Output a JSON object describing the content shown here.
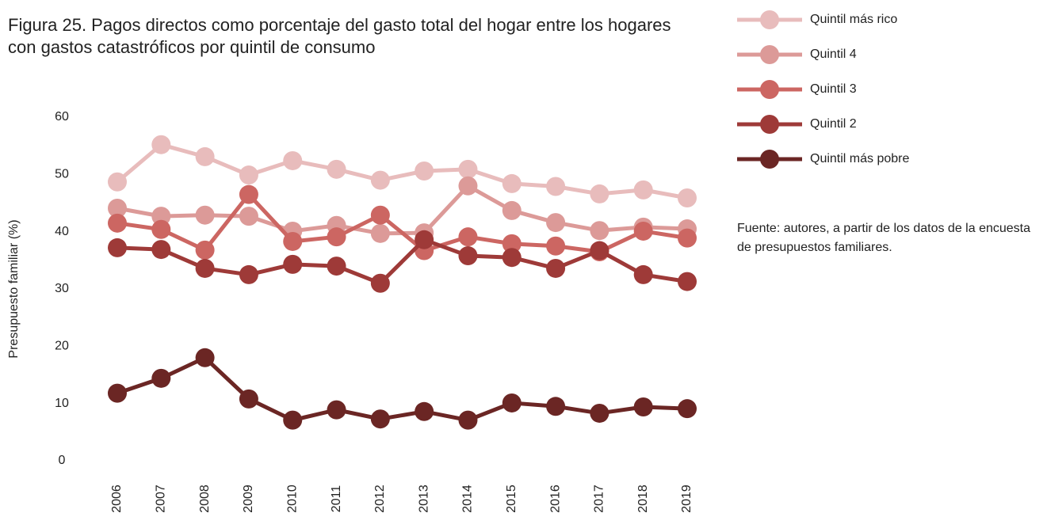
{
  "chart_data": {
    "type": "line",
    "title": "Figura 25. Pagos directos como porcentaje del gasto total del hogar entre los hogares con gastos catastróficos por quintil de consumo",
    "y_label": "Presupuesto familiar (%)",
    "source": "Fuente: autores, a partir de los datos de la encuesta de presupuestos familiares.",
    "categories": [
      "2006",
      "2007",
      "2008",
      "2009",
      "2010",
      "2011",
      "2012",
      "2013",
      "2014",
      "2015",
      "2016",
      "2017",
      "2018",
      "2019"
    ],
    "ylim": [
      0,
      60
    ],
    "yticks": [
      0,
      10,
      20,
      30,
      40,
      50,
      60
    ],
    "grid": false,
    "series": [
      {
        "name": "Quintil más rico",
        "color": "#e8bcbc",
        "values": [
          48.7,
          55.2,
          53.1,
          49.9,
          52.4,
          50.9,
          49.0,
          50.6,
          50.9,
          48.4,
          47.9,
          46.6,
          47.3,
          45.9
        ]
      },
      {
        "name": "Quintil 4",
        "color": "#dc9a98",
        "values": [
          44.1,
          42.7,
          42.9,
          42.7,
          40.1,
          41.1,
          39.7,
          39.8,
          48.0,
          43.7,
          41.6,
          40.2,
          40.8,
          40.5
        ]
      },
      {
        "name": "Quintil 3",
        "color": "#cc6662",
        "values": [
          41.5,
          40.4,
          36.8,
          46.5,
          38.3,
          39.1,
          42.9,
          36.7,
          39.1,
          37.9,
          37.5,
          36.5,
          40.1,
          38.9
        ]
      },
      {
        "name": "Quintil 2",
        "color": "#9e3a38",
        "values": [
          37.2,
          36.9,
          33.6,
          32.5,
          34.3,
          34.0,
          31.0,
          38.6,
          35.8,
          35.5,
          33.6,
          36.7,
          32.5,
          31.3
        ]
      },
      {
        "name": "Quintil más pobre",
        "color": "#6b2624",
        "values": [
          11.8,
          14.4,
          18.0,
          10.8,
          7.1,
          8.9,
          7.3,
          8.6,
          7.1,
          10.1,
          9.5,
          8.3,
          9.4,
          9.1
        ]
      }
    ]
  }
}
